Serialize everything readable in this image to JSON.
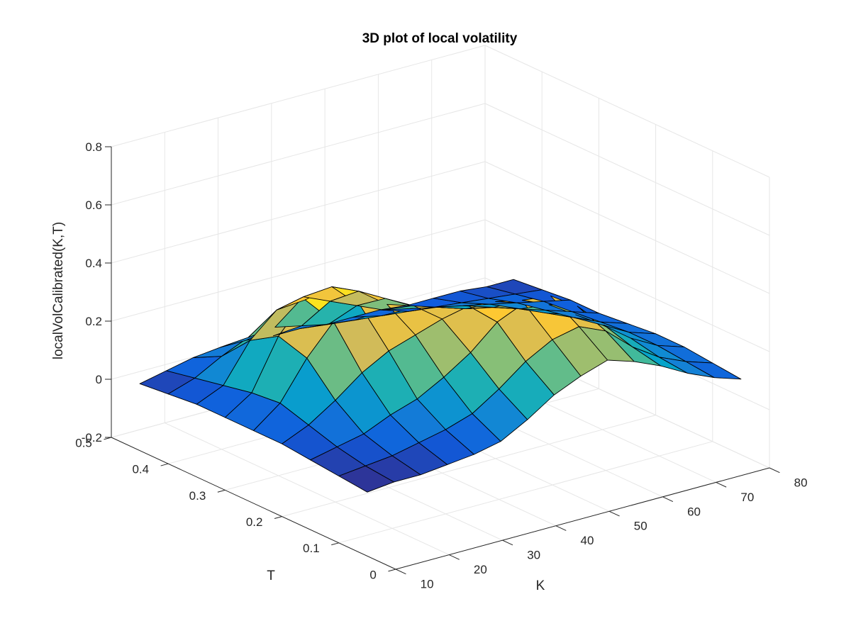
{
  "chart_data": {
    "type": "surface",
    "title": "3D plot of local volatility",
    "xlabel": "K",
    "ylabel": "T",
    "zlabel": "localVolCalibrated(K,T)",
    "xlim": [
      10,
      80
    ],
    "ylim": [
      0,
      0.5
    ],
    "zlim": [
      -0.2,
      0.8
    ],
    "xticks": [
      "10",
      "20",
      "30",
      "40",
      "50",
      "60",
      "70",
      "80"
    ],
    "yticks": [
      "0",
      "0.1",
      "0.2",
      "0.3",
      "0.4",
      "0.5"
    ],
    "zticks": [
      "-0.2",
      "0",
      "0.2",
      "0.4",
      "0.6",
      "0.8"
    ],
    "grid": true,
    "colormap": "parula",
    "colormap_stops": [
      "#352a87",
      "#0f5cdd",
      "#1481d6",
      "#06a4ca",
      "#2eb7a4",
      "#87bf77",
      "#d1bb59",
      "#fec832",
      "#f9fb0e"
    ],
    "surface": {
      "K": [
        10,
        15,
        20,
        25,
        30,
        35,
        40,
        45,
        50,
        55,
        60,
        65,
        70,
        75,
        80
      ],
      "T": [
        0.05,
        0.1,
        0.15,
        0.2,
        0.25,
        0.3,
        0.35,
        0.4,
        0.45
      ],
      "Z": [
        [
          0.02,
          0.03,
          0.03,
          0.04,
          0.05,
          0.07,
          0.12,
          0.18,
          0.22,
          0.25,
          0.22,
          0.18,
          0.13,
          0.09,
          0.06
        ],
        [
          0.03,
          0.04,
          0.05,
          0.07,
          0.09,
          0.12,
          0.18,
          0.25,
          0.3,
          0.32,
          0.28,
          0.2,
          0.14,
          0.1,
          0.07
        ],
        [
          0.04,
          0.06,
          0.08,
          0.12,
          0.15,
          0.2,
          0.26,
          0.34,
          0.38,
          0.38,
          0.32,
          0.23,
          0.16,
          0.11,
          0.08
        ],
        [
          0.05,
          0.09,
          0.15,
          0.22,
          0.27,
          0.3,
          0.33,
          0.35,
          0.34,
          0.32,
          0.28,
          0.22,
          0.16,
          0.11,
          0.08
        ],
        [
          0.05,
          0.12,
          0.25,
          0.35,
          0.38,
          0.36,
          0.33,
          0.3,
          0.27,
          0.25,
          0.22,
          0.18,
          0.14,
          0.1,
          0.07
        ],
        [
          0.05,
          0.11,
          0.28,
          0.38,
          0.4,
          0.36,
          0.31,
          0.26,
          0.23,
          0.2,
          0.18,
          0.15,
          0.12,
          0.09,
          0.06
        ],
        [
          0.05,
          0.09,
          0.22,
          0.3,
          0.32,
          0.28,
          0.24,
          0.2,
          0.18,
          0.16,
          0.14,
          0.12,
          0.1,
          0.08,
          0.06
        ],
        [
          0.04,
          0.07,
          0.12,
          0.16,
          0.17,
          0.15,
          0.13,
          0.12,
          0.11,
          0.1,
          0.09,
          0.08,
          0.07,
          0.06,
          0.05
        ],
        [
          0.03,
          0.05,
          0.07,
          0.08,
          0.08,
          0.07,
          0.07,
          0.06,
          0.06,
          0.06,
          0.05,
          0.05,
          0.05,
          0.04,
          0.04
        ]
      ]
    }
  }
}
